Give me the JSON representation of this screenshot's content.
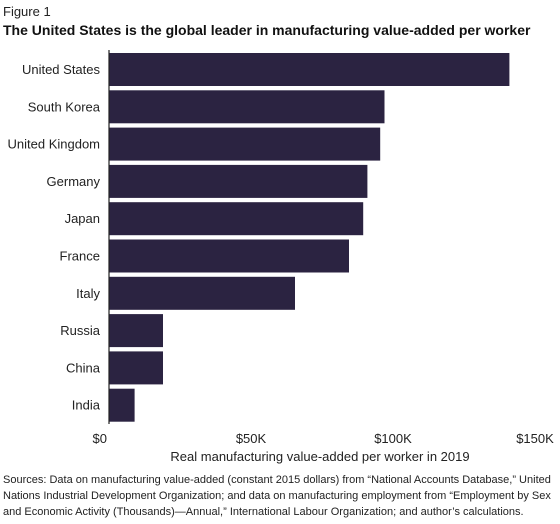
{
  "figure_label": "Figure 1",
  "title": "The United States is the global leader in manufacturing value-added per worker",
  "source_note": "Sources: Data on manufacturing value-added (constant 2015 dollars) from “National Accounts Database,” United Nations Industrial Development Organization; and data on manufacturing employment from “Employment by Sex and Economic Activity (Thousands)—Annual,” International Labour Organization; and author’s calculations.",
  "colors": {
    "bar": "#2b2341",
    "axis": "#222222"
  },
  "chart_data": {
    "type": "bar",
    "orientation": "horizontal",
    "categories": [
      "United States",
      "South Korea",
      "United Kingdom",
      "Germany",
      "Japan",
      "France",
      "Italy",
      "Russia",
      "China",
      "India"
    ],
    "values": [
      141000,
      97000,
      95500,
      91000,
      89500,
      84500,
      65500,
      19000,
      19000,
      9000
    ],
    "xlabel": "Real manufacturing value-added per worker in 2019",
    "ylabel": "",
    "xlim": [
      0,
      150000
    ],
    "xticks": [
      {
        "value": 0,
        "label": "$0"
      },
      {
        "value": 50000,
        "label": "$50K"
      },
      {
        "value": 100000,
        "label": "$100K"
      },
      {
        "value": 150000,
        "label": "$150K"
      }
    ],
    "grid": false,
    "legend": "none"
  }
}
